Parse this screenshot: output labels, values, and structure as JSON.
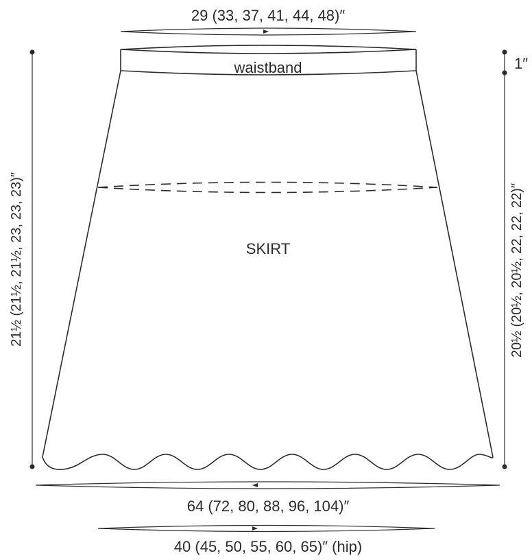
{
  "labels": {
    "waist_width": "29 (33, 37, 41, 44, 48)″",
    "waistband": "waistband",
    "waistband_height": "1″",
    "skirt": "SKIRT",
    "total_length": "21½ (21½, 21½, 23, 23, 23)″",
    "skirt_length": "20½ (20½, 20½, 22, 22, 22)″",
    "hem_width": "64 (72, 80, 88, 96, 104)″",
    "hip_width": "40 (45, 50, 55, 60, 65)″ (hip)"
  },
  "colors": {
    "ink": "#2b2b2b",
    "background": "#ffffff"
  }
}
